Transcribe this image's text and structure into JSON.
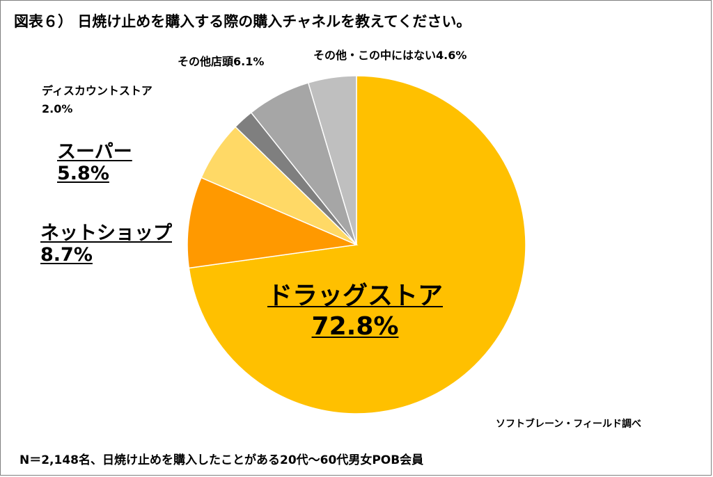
{
  "title": "図表６） 日焼け止めを購入する際の購入チャネルを教えてください。",
  "source": "ソフトブレーン・フィールド調べ",
  "note": "N＝2,148名、日焼け止めを購入したことがある20代～60代男女POB会員",
  "colors": {
    "drugstore": "#FFC000",
    "net_shop": "#FF9900",
    "supermarket": "#FFD966",
    "discount_store": "#7F7F7F",
    "other_store": "#A6A6A6",
    "none": "#BFBFBF",
    "border": "#7F7F7F"
  },
  "chart_data": {
    "type": "pie",
    "start_angle_deg": 0,
    "direction": "clockwise",
    "slices": [
      {
        "label": "ドラッグストア",
        "value": 72.8,
        "value_text": "72.8%",
        "color": "#FFC000"
      },
      {
        "label": "ネットショップ",
        "value": 8.7,
        "value_text": "8.7%",
        "color": "#FF9900"
      },
      {
        "label": "スーパー",
        "value": 5.8,
        "value_text": "5.8%",
        "color": "#FFD966"
      },
      {
        "label": "ディスカウントストア",
        "value": 2.0,
        "value_text": "2.0%",
        "color": "#7F7F7F"
      },
      {
        "label": "その他店頭",
        "value": 6.1,
        "value_text": "6.1%",
        "color": "#A6A6A6"
      },
      {
        "label": "その他・この中にはない",
        "value": 4.6,
        "value_text": "4.6%",
        "color": "#BFBFBF"
      }
    ]
  }
}
